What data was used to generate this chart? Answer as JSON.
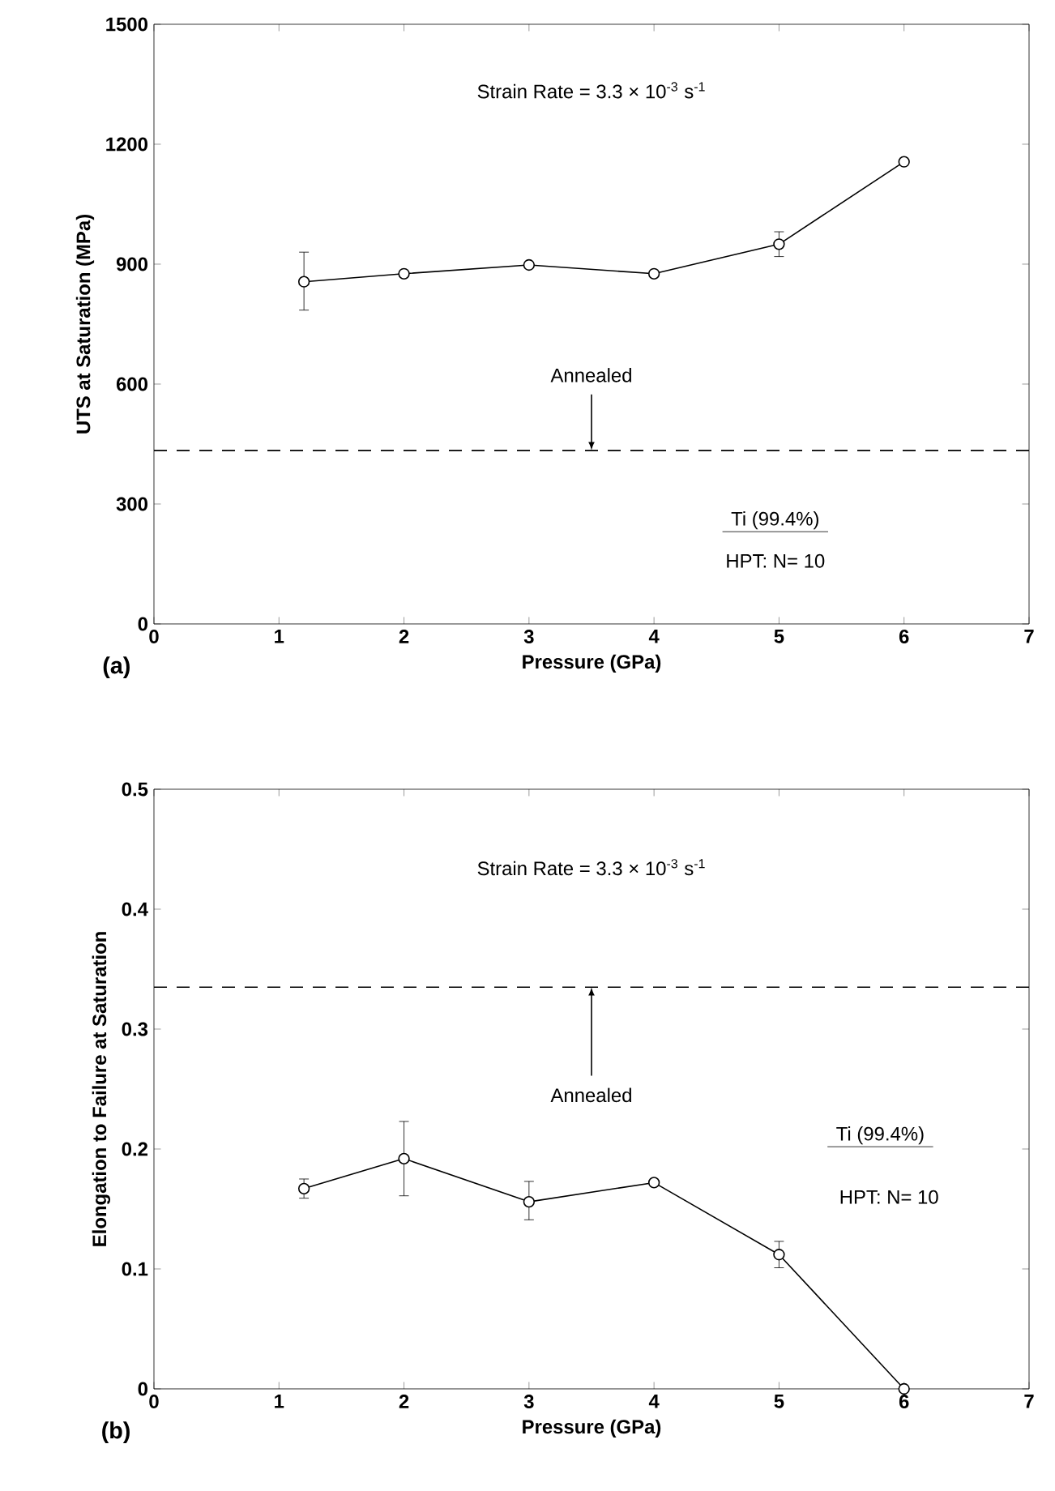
{
  "chart_data": [
    {
      "type": "line",
      "title": "(a)",
      "xlabel": "Pressure (GPa)",
      "ylabel": "UTS at Saturation (MPa)",
      "x": [
        1.2,
        2,
        3,
        4,
        5,
        6
      ],
      "series": [
        {
          "color": "#000000",
          "values": [
            856,
            876,
            898,
            876,
            950,
            1156
          ],
          "errors": [
            [
              785,
              930
            ],
            null,
            null,
            null,
            [
              919,
              981
            ],
            null
          ]
        }
      ],
      "xlim": [
        0,
        7
      ],
      "xticks": [
        0,
        1,
        2,
        3,
        4,
        5,
        6,
        7
      ],
      "ylim": [
        0,
        1500
      ],
      "yticks": [
        0,
        300,
        600,
        900,
        1200,
        1500
      ],
      "marker": "circle",
      "line_style": "solid",
      "ref_lines": [
        {
          "axis": "y",
          "value": 434,
          "label": "Annealed",
          "line_style": "dashed"
        }
      ],
      "annotations": [
        "Strain Rate = 3.3 × 10$^{-3}$ s$^{-1}$",
        "Ti (99.4%)",
        "HPT: N= 10"
      ]
    },
    {
      "type": "line",
      "title": "(b)",
      "xlabel": "Pressure (GPa)",
      "ylabel": "Elongation to Failure at Saturation",
      "x": [
        1.2,
        2,
        3,
        4,
        5,
        6
      ],
      "series": [
        {
          "color": "#000000",
          "values": [
            0.167,
            0.192,
            0.156,
            0.172,
            0.112,
            0
          ],
          "errors": [
            [
              0.159,
              0.175
            ],
            [
              0.161,
              0.223
            ],
            [
              0.141,
              0.173
            ],
            null,
            [
              0.101,
              0.123
            ],
            null
          ]
        }
      ],
      "xlim": [
        0,
        7
      ],
      "xticks": [
        0,
        1,
        2,
        3,
        4,
        5,
        6,
        7
      ],
      "ylim": [
        0,
        0.5
      ],
      "yticks": [
        0,
        0.1,
        0.2,
        0.3,
        0.4,
        0.5
      ],
      "marker": "circle",
      "line_style": "solid",
      "ref_lines": [
        {
          "axis": "y",
          "value": 0.335,
          "label": "Annealed",
          "line_style": "dashed"
        }
      ],
      "annotations": [
        "Strain Rate = 3.3 × 10$^{-3}$ s$^{-1}$",
        "Ti (99.4%)",
        "HPT: N= 10"
      ]
    }
  ]
}
